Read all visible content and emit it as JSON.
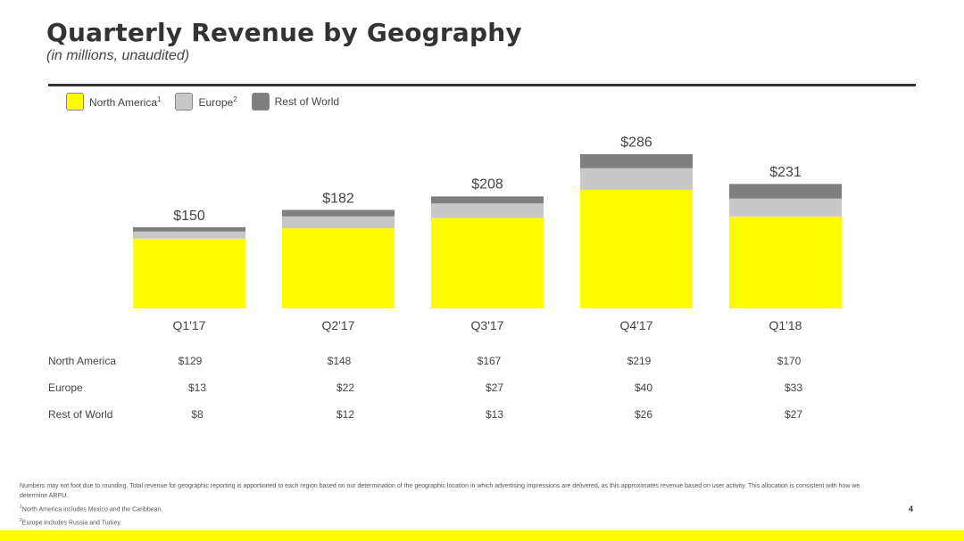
{
  "title": "Quarterly Revenue by Geography",
  "subtitle": "(in millions, unaudited)",
  "legend": [
    {
      "label": "North America",
      "sup": "1",
      "color": "#fffc00"
    },
    {
      "label": "Europe",
      "sup": "2",
      "color": "#c8c8c8"
    },
    {
      "label": "Rest of World",
      "sup": "",
      "color": "#7f7f7f"
    }
  ],
  "chart_data": {
    "type": "bar",
    "stacked": true,
    "categories": [
      "Q1'17",
      "Q2'17",
      "Q3'17",
      "Q4'17",
      "Q1'18"
    ],
    "totals": [
      "$150",
      "$182",
      "$208",
      "$286",
      "$231"
    ],
    "total_values": [
      150,
      182,
      208,
      286,
      231
    ],
    "series": [
      {
        "name": "North America",
        "values": [
          129,
          148,
          167,
          219,
          170
        ],
        "color": "#fffc00"
      },
      {
        "name": "Europe",
        "values": [
          13,
          22,
          27,
          40,
          33
        ],
        "color": "#c8c8c8"
      },
      {
        "name": "Rest of World",
        "values": [
          8,
          12,
          13,
          26,
          27
        ],
        "color": "#7f7f7f"
      }
    ],
    "title": "Quarterly Revenue by Geography",
    "ylabel": "",
    "xlabel": ""
  },
  "table": {
    "rows": [
      {
        "label": "North America",
        "values": [
          "$129",
          "$148",
          "$167",
          "$219",
          "$170"
        ]
      },
      {
        "label": "Europe",
        "values": [
          "$13",
          "$22",
          "$27",
          "$40",
          "$33"
        ]
      },
      {
        "label": "Rest of World",
        "values": [
          "$8",
          "$12",
          "$13",
          "$26",
          "$27"
        ]
      }
    ]
  },
  "footnotes": {
    "main": "Numbers may not foot due to rounding. Total revenue for geographic reporting is apportioned to each region based on our determination of the geographic location in which advertising impressions are delivered, as this approximates revenue based on user activity. This allocation is consistent with how we determine ARPU.",
    "note1_sup": "1",
    "note1": "North America includes Mexico and the Caribbean.",
    "note2_sup": "2",
    "note2": "Europe includes Russia and Turkey."
  },
  "page_number": "4",
  "colors": {
    "accent": "#fffc00",
    "text": "#333333"
  }
}
